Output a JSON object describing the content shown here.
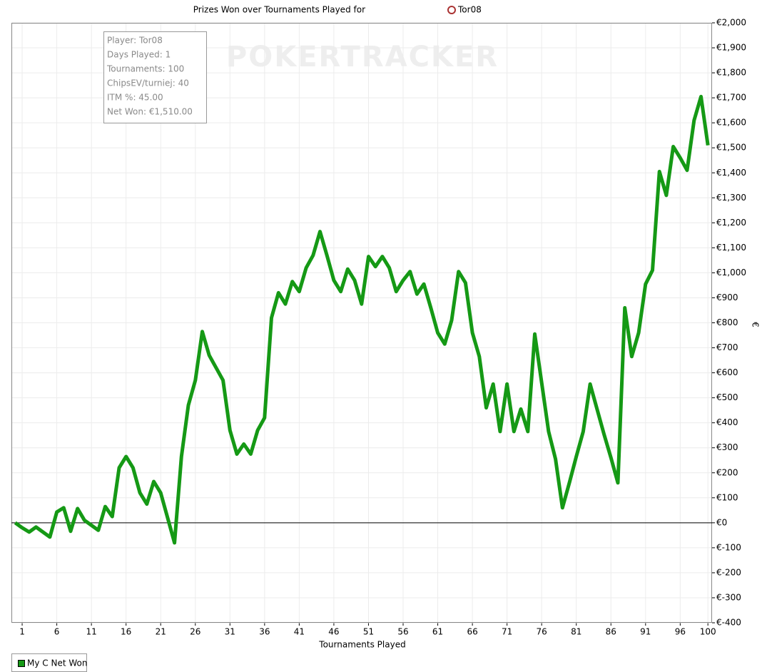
{
  "chart_data": {
    "type": "line",
    "title": "Prizes Won over Tournaments Played for",
    "title_player": "Tor08",
    "watermark": "POKERTRACKER",
    "info": [
      "Player: Tor08",
      "Days Played: 1",
      "Tournaments: 100",
      "ChipsEV/turniej: 40",
      "ITM %: 45.00",
      "Net Won: €1,510.00"
    ],
    "x_label": "Tournaments Played",
    "y_label": "€",
    "x": [
      0,
      1,
      2,
      3,
      4,
      5,
      6,
      7,
      8,
      9,
      10,
      11,
      12,
      13,
      14,
      15,
      16,
      17,
      18,
      19,
      20,
      21,
      22,
      23,
      24,
      25,
      26,
      27,
      28,
      29,
      30,
      31,
      32,
      33,
      34,
      35,
      36,
      37,
      38,
      39,
      40,
      41,
      42,
      43,
      44,
      45,
      46,
      47,
      48,
      49,
      50,
      51,
      52,
      53,
      54,
      55,
      56,
      57,
      58,
      59,
      60,
      61,
      62,
      63,
      64,
      65,
      66,
      67,
      68,
      69,
      70,
      71,
      72,
      73,
      74,
      75,
      76,
      77,
      78,
      79,
      80,
      81,
      82,
      83,
      84,
      85,
      86,
      87,
      88,
      89,
      90,
      91,
      92,
      93,
      94,
      95,
      96,
      97,
      98,
      99,
      100
    ],
    "series": [
      {
        "name": "My C Net Won",
        "color": "#159915",
        "values": [
          0,
          -20,
          -37,
          -17,
          -37,
          -57,
          43,
          60,
          -34,
          57,
          10,
          -10,
          -30,
          65,
          25,
          220,
          265,
          220,
          120,
          75,
          165,
          120,
          20,
          -80,
          265,
          470,
          570,
          765,
          670,
          620,
          570,
          370,
          275,
          315,
          275,
          370,
          420,
          820,
          920,
          875,
          965,
          925,
          1020,
          1070,
          1165,
          1070,
          970,
          925,
          1015,
          970,
          875,
          1065,
          1025,
          1065,
          1020,
          925,
          970,
          1005,
          915,
          955,
          860,
          760,
          715,
          810,
          1005,
          960,
          760,
          665,
          460,
          555,
          365,
          555,
          365,
          455,
          365,
          755,
          560,
          365,
          255,
          60,
          160,
          265,
          365,
          555,
          455,
          355,
          260,
          160,
          860,
          665,
          760,
          955,
          1010,
          1405,
          1310,
          1505,
          1460,
          1410,
          1610,
          1705,
          1510
        ]
      }
    ],
    "xlim": [
      -0.55,
      100.6
    ],
    "xticks": [
      1,
      6,
      11,
      16,
      21,
      26,
      31,
      36,
      41,
      46,
      51,
      56,
      61,
      66,
      71,
      76,
      81,
      86,
      91,
      96,
      100
    ],
    "ylim": [
      -400,
      2000
    ],
    "yticks": [
      {
        "value": -400,
        "label": "€-400"
      },
      {
        "value": -300,
        "label": "€-300"
      },
      {
        "value": -200,
        "label": "€-200"
      },
      {
        "value": -100,
        "label": "€-100"
      },
      {
        "value": 0,
        "label": "€0"
      },
      {
        "value": 100,
        "label": "€100"
      },
      {
        "value": 200,
        "label": "€200"
      },
      {
        "value": 300,
        "label": "€300"
      },
      {
        "value": 400,
        "label": "€400"
      },
      {
        "value": 500,
        "label": "€500"
      },
      {
        "value": 600,
        "label": "€600"
      },
      {
        "value": 700,
        "label": "€700"
      },
      {
        "value": 800,
        "label": "€800"
      },
      {
        "value": 900,
        "label": "€900"
      },
      {
        "value": 1000,
        "label": "€1,000"
      },
      {
        "value": 1100,
        "label": "€1,100"
      },
      {
        "value": 1200,
        "label": "€1,200"
      },
      {
        "value": 1300,
        "label": "€1,300"
      },
      {
        "value": 1400,
        "label": "€1,400"
      },
      {
        "value": 1500,
        "label": "€1,500"
      },
      {
        "value": 1600,
        "label": "€1,600"
      },
      {
        "value": 1700,
        "label": "€1,700"
      },
      {
        "value": 1800,
        "label": "€1,800"
      },
      {
        "value": 1900,
        "label": "€1,900"
      },
      {
        "value": 2000,
        "label": "€2,000"
      }
    ],
    "grid": true,
    "legend": "bottom-left"
  }
}
